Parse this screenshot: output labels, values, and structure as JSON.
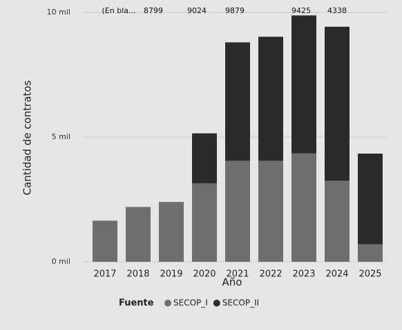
{
  "chart_data": {
    "type": "stacked_bar",
    "y_axis_label": "Cantidad de contratos",
    "x_axis_label": "Año",
    "legend_title": "Fuente",
    "categories": [
      "2017",
      "2018",
      "2019",
      "2020",
      "2021",
      "2022",
      "2023",
      "2024",
      "2025"
    ],
    "series": [
      {
        "name": "SECOP_I",
        "color": "#6f6f6f",
        "values": [
          1650,
          2200,
          2400,
          3150,
          4050,
          4050,
          4350,
          3250,
          700
        ]
      },
      {
        "name": "SECOP_II",
        "color": "#2b2b2b",
        "values": [
          0,
          0,
          0,
          2000,
          4749,
          4974,
          5529,
          6175,
          3638
        ]
      }
    ],
    "ylim": [
      0,
      10000
    ],
    "yticks": [
      {
        "value": 0,
        "label": "0 mil"
      },
      {
        "value": 5000,
        "label": "5 mil"
      },
      {
        "value": 10000,
        "label": "10 mil"
      }
    ],
    "grid": true,
    "annotations": [
      "(En bla...",
      "8799",
      "9024",
      "9879",
      "9425",
      "4338"
    ]
  }
}
